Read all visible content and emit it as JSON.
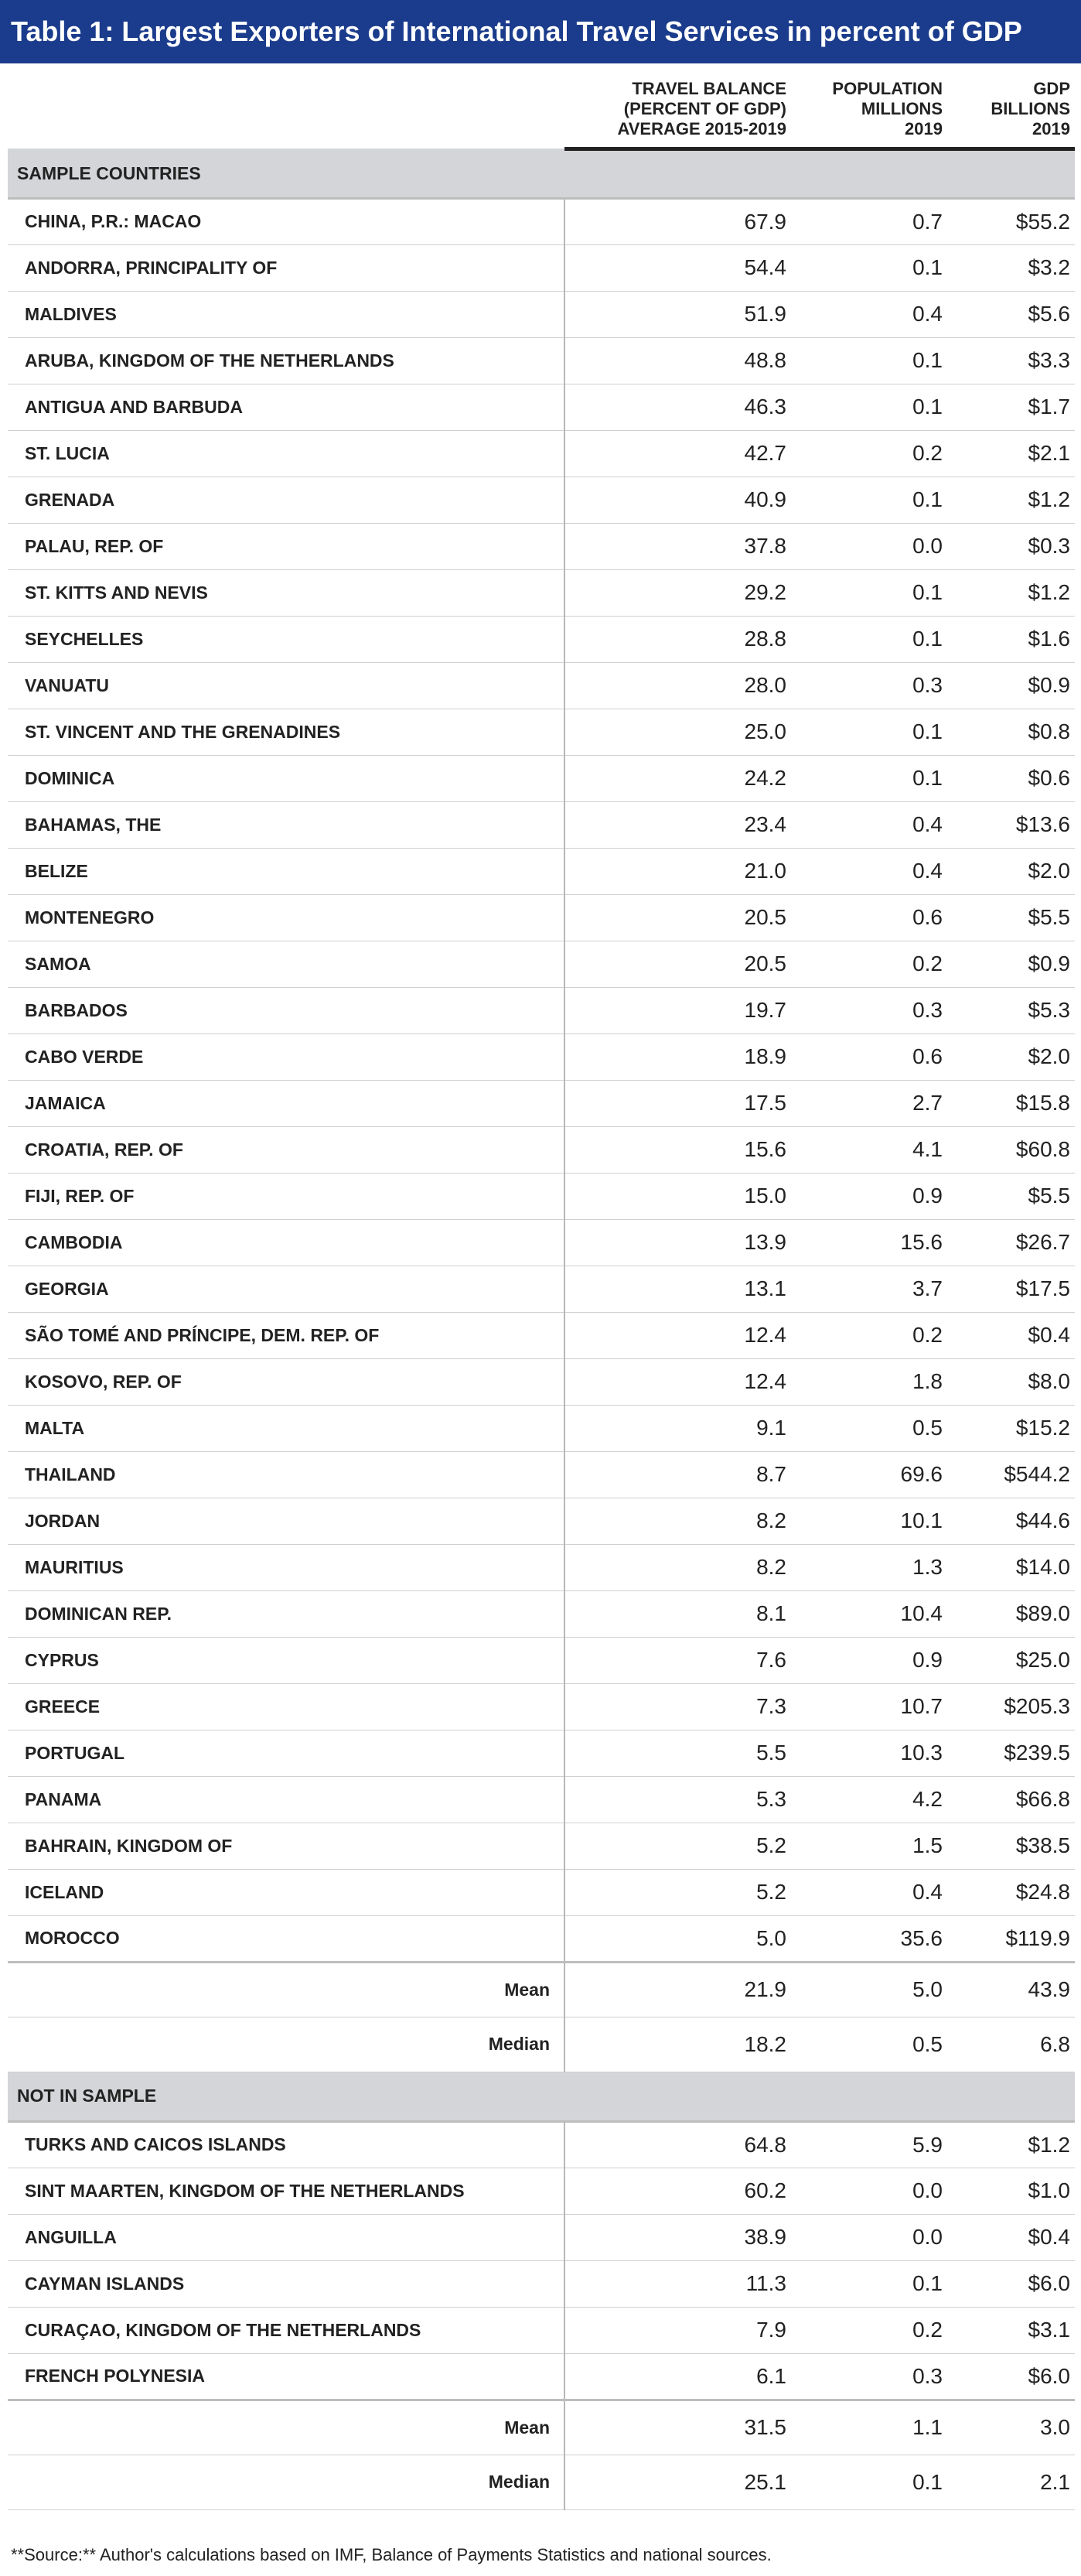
{
  "title": "Table 1: Largest Exporters of International Travel Services in percent of GDP",
  "headers": {
    "col1": [
      "TRAVEL BALANCE",
      "(PERCENT OF GDP)",
      "AVERAGE 2015-2019"
    ],
    "col2": [
      "POPULATION",
      "MILLIONS",
      "2019"
    ],
    "col3": [
      "GDP",
      "BILLIONS",
      "2019"
    ]
  },
  "sections": [
    {
      "label": "SAMPLE COUNTRIES",
      "rows": [
        [
          "CHINA, P.R.: MACAO",
          "67.9",
          "0.7",
          "$55.2"
        ],
        [
          "ANDORRA, PRINCIPALITY OF",
          "54.4",
          "0.1",
          "$3.2"
        ],
        [
          "MALDIVES",
          "51.9",
          "0.4",
          "$5.6"
        ],
        [
          "ARUBA, KINGDOM OF THE NETHERLANDS",
          "48.8",
          "0.1",
          "$3.3"
        ],
        [
          "ANTIGUA AND BARBUDA",
          "46.3",
          "0.1",
          "$1.7"
        ],
        [
          "ST. LUCIA",
          "42.7",
          "0.2",
          "$2.1"
        ],
        [
          "GRENADA",
          "40.9",
          "0.1",
          "$1.2"
        ],
        [
          "PALAU, REP. OF",
          "37.8",
          "0.0",
          "$0.3"
        ],
        [
          "ST. KITTS AND NEVIS",
          "29.2",
          "0.1",
          "$1.2"
        ],
        [
          "SEYCHELLES",
          "28.8",
          "0.1",
          "$1.6"
        ],
        [
          "VANUATU",
          "28.0",
          "0.3",
          "$0.9"
        ],
        [
          "ST. VINCENT AND THE GRENADINES",
          "25.0",
          "0.1",
          "$0.8"
        ],
        [
          "DOMINICA",
          "24.2",
          "0.1",
          "$0.6"
        ],
        [
          "BAHAMAS, THE",
          "23.4",
          "0.4",
          "$13.6"
        ],
        [
          "BELIZE",
          "21.0",
          "0.4",
          "$2.0"
        ],
        [
          "MONTENEGRO",
          "20.5",
          "0.6",
          "$5.5"
        ],
        [
          "SAMOA",
          "20.5",
          "0.2",
          "$0.9"
        ],
        [
          "BARBADOS",
          "19.7",
          "0.3",
          "$5.3"
        ],
        [
          "CABO VERDE",
          "18.9",
          "0.6",
          "$2.0"
        ],
        [
          "JAMAICA",
          "17.5",
          "2.7",
          "$15.8"
        ],
        [
          "CROATIA, REP. OF",
          "15.6",
          "4.1",
          "$60.8"
        ],
        [
          "FIJI, REP. OF",
          "15.0",
          "0.9",
          "$5.5"
        ],
        [
          "CAMBODIA",
          "13.9",
          "15.6",
          "$26.7"
        ],
        [
          "GEORGIA",
          "13.1",
          "3.7",
          "$17.5"
        ],
        [
          "SÃO TOMÉ AND PRÍNCIPE, DEM. REP. OF",
          "12.4",
          "0.2",
          "$0.4"
        ],
        [
          "KOSOVO, REP. OF",
          "12.4",
          "1.8",
          "$8.0"
        ],
        [
          "MALTA",
          "9.1",
          "0.5",
          "$15.2"
        ],
        [
          "THAILAND",
          "8.7",
          "69.6",
          "$544.2"
        ],
        [
          "JORDAN",
          "8.2",
          "10.1",
          "$44.6"
        ],
        [
          "MAURITIUS",
          "8.2",
          "1.3",
          "$14.0"
        ],
        [
          "DOMINICAN REP.",
          "8.1",
          "10.4",
          "$89.0"
        ],
        [
          "CYPRUS",
          "7.6",
          "0.9",
          "$25.0"
        ],
        [
          "GREECE",
          "7.3",
          "10.7",
          "$205.3"
        ],
        [
          "PORTUGAL",
          "5.5",
          "10.3",
          "$239.5"
        ],
        [
          "PANAMA",
          "5.3",
          "4.2",
          "$66.8"
        ],
        [
          "BAHRAIN, KINGDOM OF",
          "5.2",
          "1.5",
          "$38.5"
        ],
        [
          "ICELAND",
          "5.2",
          "0.4",
          "$24.8"
        ],
        [
          "MOROCCO",
          "5.0",
          "35.6",
          "$119.9"
        ]
      ],
      "stats": [
        [
          "Mean",
          "21.9",
          "5.0",
          "43.9"
        ],
        [
          "Median",
          "18.2",
          "0.5",
          "6.8"
        ]
      ]
    },
    {
      "label": "NOT IN SAMPLE",
      "rows": [
        [
          "TURKS AND CAICOS ISLANDS",
          "64.8",
          "5.9",
          "$1.2"
        ],
        [
          "SINT MAARTEN, KINGDOM OF THE NETHERLANDS",
          "60.2",
          "0.0",
          "$1.0"
        ],
        [
          "ANGUILLA",
          "38.9",
          "0.0",
          "$0.4"
        ],
        [
          "CAYMAN ISLANDS",
          "11.3",
          "0.1",
          "$6.0"
        ],
        [
          "CURAÇAO, KINGDOM OF THE NETHERLANDS",
          "7.9",
          "0.2",
          "$3.1"
        ],
        [
          "FRENCH POLYNESIA",
          "6.1",
          "0.3",
          "$6.0"
        ]
      ],
      "stats": [
        [
          "Mean",
          "31.5",
          "1.1",
          "3.0"
        ],
        [
          "Median",
          "25.1",
          "0.1",
          "2.1"
        ]
      ]
    }
  ],
  "source": "**Source:** Author's calculations based on IMF, Balance of Payments Statistics and national sources."
}
